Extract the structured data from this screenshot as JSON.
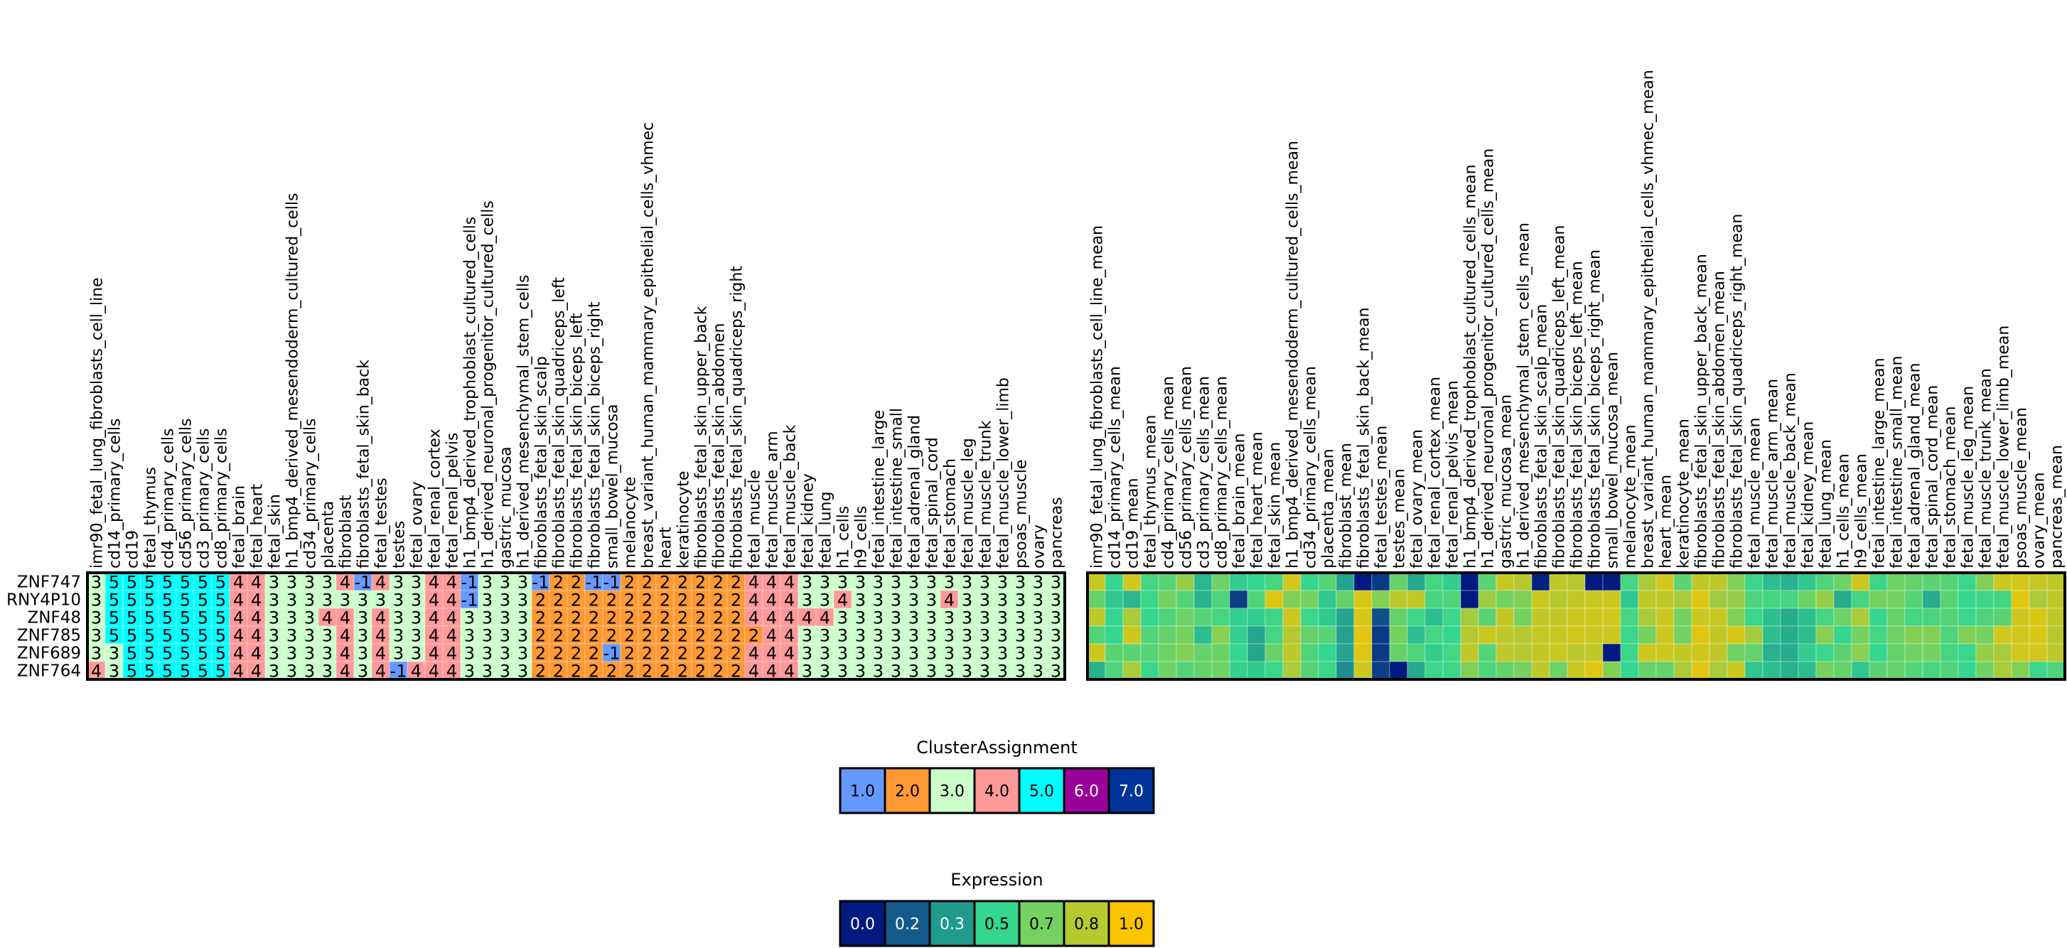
{
  "chart_data": [
    {
      "type": "heatmap",
      "title": "ClusterAssignment",
      "rows": [
        "ZNF747",
        "RNY4P10",
        "ZNF48",
        "ZNF785",
        "ZNF689",
        "ZNF764"
      ],
      "columns": [
        "imr90_fetal_lung_fibroblasts_cell_line",
        "cd14_primary_cells",
        "cd19",
        "fetal_thymus",
        "cd4_primary_cells",
        "cd56_primary_cells",
        "cd3_primary_cells",
        "cd8_primary_cells",
        "fetal_brain",
        "fetal_heart",
        "fetal_skin",
        "h1_bmp4_derived_mesendoderm_cultured_cells",
        "cd34_primary_cells",
        "placenta",
        "fibroblast",
        "fibroblasts_fetal_skin_back",
        "fetal_testes",
        "testes",
        "fetal_ovary",
        "fetal_renal_cortex",
        "fetal_renal_pelvis",
        "h1_bmp4_derived_trophoblast_cultured_cells",
        "h1_derived_neuronal_progenitor_cultured_cells",
        "gastric_mucosa",
        "h1_derived_mesenchymal_stem_cells",
        "fibroblasts_fetal_skin_scalp",
        "fibroblasts_fetal_skin_quadriceps_left",
        "fibroblasts_fetal_skin_biceps_left",
        "fibroblasts_fetal_skin_biceps_right",
        "small_bowel_mucosa",
        "melanocyte",
        "breast_variant_human_mammary_epithelial_cells_vhmec",
        "heart",
        "keratinocyte",
        "fibroblasts_fetal_skin_upper_back",
        "fibroblasts_fetal_skin_abdomen",
        "fibroblasts_fetal_skin_quadriceps_right",
        "fetal_muscle",
        "fetal_muscle_arm",
        "fetal_muscle_back",
        "fetal_kidney",
        "fetal_lung",
        "h1_cells",
        "h9_cells",
        "fetal_intestine_large",
        "fetal_intestine_small",
        "fetal_adrenal_gland",
        "fetal_spinal_cord",
        "fetal_stomach",
        "fetal_muscle_leg",
        "fetal_muscle_trunk",
        "fetal_muscle_lower_limb",
        "psoas_muscle",
        "ovary",
        "pancreas"
      ],
      "values": [
        [
          3,
          5,
          5,
          5,
          5,
          5,
          5,
          5,
          4,
          4,
          3,
          3,
          3,
          3,
          4,
          -1,
          4,
          3,
          3,
          4,
          4,
          -1,
          3,
          3,
          3,
          -1,
          2,
          2,
          -1,
          -1,
          2,
          2,
          2,
          2,
          2,
          2,
          2,
          4,
          4,
          4,
          3,
          3,
          3,
          3,
          3,
          3,
          3,
          3,
          3,
          3,
          3,
          3,
          3,
          3,
          3
        ],
        [
          3,
          5,
          5,
          5,
          5,
          5,
          5,
          5,
          4,
          4,
          3,
          3,
          3,
          3,
          3,
          3,
          3,
          3,
          3,
          4,
          4,
          -1,
          3,
          3,
          3,
          2,
          2,
          2,
          2,
          2,
          2,
          2,
          2,
          2,
          2,
          2,
          2,
          4,
          4,
          4,
          3,
          3,
          4,
          3,
          3,
          3,
          3,
          3,
          4,
          3,
          3,
          3,
          3,
          3,
          3
        ],
        [
          3,
          5,
          5,
          5,
          5,
          5,
          5,
          5,
          4,
          4,
          3,
          3,
          3,
          4,
          4,
          3,
          4,
          3,
          3,
          4,
          4,
          3,
          3,
          3,
          3,
          2,
          2,
          2,
          2,
          2,
          2,
          2,
          2,
          2,
          2,
          2,
          2,
          4,
          4,
          4,
          4,
          4,
          3,
          3,
          3,
          3,
          3,
          3,
          3,
          3,
          3,
          3,
          3,
          3,
          3
        ],
        [
          3,
          5,
          5,
          5,
          5,
          5,
          5,
          5,
          4,
          4,
          3,
          3,
          3,
          3,
          4,
          3,
          4,
          3,
          3,
          4,
          4,
          3,
          3,
          3,
          3,
          2,
          2,
          2,
          2,
          2,
          2,
          2,
          2,
          2,
          2,
          2,
          2,
          2,
          4,
          4,
          3,
          3,
          3,
          3,
          3,
          3,
          3,
          3,
          3,
          3,
          3,
          3,
          3,
          3,
          3
        ],
        [
          3,
          3,
          5,
          5,
          5,
          5,
          5,
          5,
          4,
          4,
          3,
          3,
          3,
          3,
          4,
          3,
          4,
          3,
          3,
          4,
          4,
          3,
          3,
          3,
          3,
          2,
          2,
          2,
          2,
          -1,
          2,
          2,
          2,
          2,
          2,
          2,
          2,
          4,
          4,
          4,
          3,
          3,
          3,
          3,
          3,
          3,
          3,
          3,
          3,
          3,
          3,
          3,
          3,
          3,
          3
        ],
        [
          4,
          3,
          5,
          5,
          5,
          5,
          5,
          5,
          4,
          4,
          3,
          3,
          3,
          3,
          4,
          3,
          4,
          -1,
          4,
          4,
          4,
          3,
          3,
          3,
          3,
          2,
          2,
          2,
          2,
          2,
          2,
          2,
          2,
          2,
          2,
          2,
          2,
          4,
          4,
          4,
          3,
          3,
          3,
          3,
          3,
          3,
          3,
          3,
          3,
          3,
          3,
          3,
          3,
          3,
          3
        ]
      ],
      "color_map": {
        "-1": "#6699ff",
        "1": "#6699ff",
        "2": "#ff9933",
        "3": "#ccffcc",
        "4": "#ff9999",
        "5": "#00ffff",
        "6": "#990099",
        "7": "#003399"
      }
    },
    {
      "type": "heatmap",
      "title": "Expression",
      "rows": [
        "ZNF747",
        "RNY4P10",
        "ZNF48",
        "ZNF785",
        "ZNF689",
        "ZNF764"
      ],
      "columns": [
        "imr90_fetal_lung_fibroblasts_cell_line_mean",
        "cd14_primary_cells_mean",
        "cd19_mean",
        "fetal_thymus_mean",
        "cd4_primary_cells_mean",
        "cd56_primary_cells_mean",
        "cd3_primary_cells_mean",
        "cd8_primary_cells_mean",
        "fetal_brain_mean",
        "fetal_heart_mean",
        "fetal_skin_mean",
        "h1_bmp4_derived_mesendoderm_cultured_cells_mean",
        "cd34_primary_cells_mean",
        "placenta_mean",
        "fibroblast_mean",
        "fibroblasts_fetal_skin_back_mean",
        "fetal_testes_mean",
        "testes_mean",
        "fetal_ovary_mean",
        "fetal_renal_cortex_mean",
        "fetal_renal_pelvis_mean",
        "h1_bmp4_derived_trophoblast_cultured_cells_mean",
        "h1_derived_neuronal_progenitor_cultured_cells_mean",
        "gastric_mucosa_mean",
        "h1_derived_mesenchymal_stem_cells_mean",
        "fibroblasts_fetal_skin_scalp_mean",
        "fibroblasts_fetal_skin_quadriceps_left_mean",
        "fibroblasts_fetal_skin_biceps_left_mean",
        "fibroblasts_fetal_skin_biceps_right_mean",
        "small_bowel_mucosa_mean",
        "melanocyte_mean",
        "breast_variant_human_mammary_epithelial_cells_vhmec_mean",
        "heart_mean",
        "keratinocyte_mean",
        "fibroblasts_fetal_skin_upper_back_mean",
        "fibroblasts_fetal_skin_abdomen_mean",
        "fibroblasts_fetal_skin_quadriceps_right_mean",
        "fetal_muscle_mean",
        "fetal_muscle_arm_mean",
        "fetal_muscle_back_mean",
        "fetal_kidney_mean",
        "fetal_lung_mean",
        "h1_cells_mean",
        "h9_cells_mean",
        "fetal_intestine_large_mean",
        "fetal_intestine_small_mean",
        "fetal_adrenal_gland_mean",
        "fetal_spinal_cord_mean",
        "fetal_stomach_mean",
        "fetal_muscle_leg_mean",
        "fetal_muscle_trunk_mean",
        "fetal_muscle_lower_limb_mean",
        "psoas_muscle_mean",
        "ovary_mean",
        "pancreas_mean"
      ],
      "values": [
        [
          0.85,
          0.5,
          0.88,
          0.55,
          0.6,
          0.75,
          0.4,
          0.68,
          0.47,
          0.5,
          0.55,
          0.88,
          0.5,
          0.6,
          0.33,
          0.0,
          0.1,
          0.65,
          0.35,
          0.55,
          0.47,
          0.0,
          0.62,
          0.85,
          0.8,
          0.02,
          0.83,
          0.8,
          0.0,
          0.0,
          0.55,
          0.78,
          0.88,
          0.62,
          0.83,
          0.82,
          0.72,
          0.52,
          0.42,
          0.38,
          0.45,
          0.58,
          0.68,
          0.87,
          0.53,
          0.68,
          0.65,
          0.62,
          0.6,
          0.52,
          0.72,
          0.87,
          0.88,
          0.85,
          0.82
        ],
        [
          0.65,
          0.45,
          0.4,
          0.53,
          0.7,
          0.6,
          0.38,
          0.58,
          0.12,
          0.58,
          0.92,
          0.72,
          0.7,
          0.45,
          0.65,
          0.9,
          0.72,
          0.82,
          0.83,
          0.55,
          0.58,
          0.0,
          0.76,
          0.7,
          0.72,
          0.86,
          0.8,
          0.84,
          0.86,
          0.87,
          0.45,
          0.83,
          0.82,
          0.78,
          0.92,
          0.76,
          0.75,
          0.58,
          0.55,
          0.55,
          0.68,
          0.75,
          0.36,
          0.55,
          0.7,
          0.7,
          0.6,
          0.36,
          0.62,
          0.5,
          0.53,
          0.55,
          0.93,
          0.78,
          0.82
        ],
        [
          0.82,
          0.5,
          0.78,
          0.5,
          0.58,
          0.68,
          0.6,
          0.56,
          0.48,
          0.47,
          0.53,
          0.87,
          0.52,
          0.46,
          0.33,
          0.9,
          0.17,
          0.65,
          0.53,
          0.42,
          0.52,
          0.77,
          0.62,
          0.84,
          0.7,
          0.83,
          0.84,
          0.86,
          0.87,
          0.88,
          0.55,
          0.78,
          0.86,
          0.7,
          0.86,
          0.85,
          0.72,
          0.52,
          0.42,
          0.36,
          0.42,
          0.55,
          0.68,
          0.78,
          0.5,
          0.65,
          0.55,
          0.57,
          0.6,
          0.52,
          0.58,
          0.62,
          0.87,
          0.9,
          0.82
        ],
        [
          0.58,
          0.5,
          0.87,
          0.6,
          0.65,
          0.7,
          0.42,
          0.73,
          0.48,
          0.34,
          0.55,
          0.8,
          0.65,
          0.6,
          0.32,
          0.93,
          0.1,
          0.7,
          0.42,
          0.55,
          0.5,
          0.8,
          0.86,
          0.82,
          0.8,
          0.85,
          0.85,
          0.88,
          0.86,
          0.87,
          0.52,
          0.7,
          0.86,
          0.7,
          0.92,
          0.83,
          0.9,
          0.77,
          0.42,
          0.36,
          0.42,
          0.73,
          0.5,
          0.7,
          0.55,
          0.68,
          0.72,
          0.72,
          0.58,
          0.72,
          0.7,
          0.88,
          0.88,
          0.9,
          0.8
        ],
        [
          0.86,
          0.62,
          0.62,
          0.6,
          0.68,
          0.72,
          0.65,
          0.67,
          0.5,
          0.34,
          0.66,
          0.82,
          0.58,
          0.5,
          0.33,
          0.92,
          0.1,
          0.65,
          0.58,
          0.47,
          0.55,
          0.83,
          0.6,
          0.82,
          0.8,
          0.84,
          0.86,
          0.81,
          0.83,
          0.0,
          0.52,
          0.87,
          0.86,
          0.84,
          0.87,
          0.83,
          0.68,
          0.65,
          0.38,
          0.36,
          0.47,
          0.52,
          0.62,
          0.73,
          0.5,
          0.65,
          0.68,
          0.7,
          0.55,
          0.52,
          0.75,
          0.78,
          0.88,
          0.88,
          0.82
        ],
        [
          0.38,
          0.58,
          0.78,
          0.52,
          0.68,
          0.6,
          0.65,
          0.68,
          0.48,
          0.46,
          0.52,
          0.78,
          0.6,
          0.52,
          0.28,
          0.86,
          0.12,
          0.0,
          0.35,
          0.52,
          0.52,
          0.72,
          0.58,
          0.65,
          0.7,
          0.82,
          0.68,
          0.85,
          0.92,
          0.72,
          0.5,
          0.66,
          0.65,
          0.78,
          0.92,
          0.78,
          0.86,
          0.45,
          0.42,
          0.38,
          0.42,
          0.7,
          0.65,
          0.45,
          0.62,
          0.65,
          0.6,
          0.56,
          0.58,
          0.5,
          0.68,
          0.78,
          0.72,
          0.52,
          0.58
        ]
      ],
      "range": [
        0,
        1
      ]
    }
  ],
  "legends": {
    "cluster": {
      "title": "ClusterAssignment",
      "items": [
        {
          "label": "1.0",
          "color": "#6699ff",
          "text_color": "#000000"
        },
        {
          "label": "2.0",
          "color": "#ff9933",
          "text_color": "#000000"
        },
        {
          "label": "3.0",
          "color": "#ccffcc",
          "text_color": "#000000"
        },
        {
          "label": "4.0",
          "color": "#ff9999",
          "text_color": "#000000"
        },
        {
          "label": "5.0",
          "color": "#00ffff",
          "text_color": "#000000"
        },
        {
          "label": "6.0",
          "color": "#990099",
          "text_color": "#ffffff"
        },
        {
          "label": "7.0",
          "color": "#003399",
          "text_color": "#ffffff"
        }
      ]
    },
    "expression": {
      "title": "Expression",
      "items": [
        {
          "label": "0.0",
          "value": 0.0,
          "color": "#001a80",
          "text_color": "#ffffff"
        },
        {
          "label": "0.2",
          "value": 0.2,
          "color": "#135a8a",
          "text_color": "#ffffff"
        },
        {
          "label": "0.3",
          "value": 0.3,
          "color": "#219a8e",
          "text_color": "#ffffff"
        },
        {
          "label": "0.5",
          "value": 0.5,
          "color": "#35d68f",
          "text_color": "#000000"
        },
        {
          "label": "0.7",
          "value": 0.7,
          "color": "#75d160",
          "text_color": "#000000"
        },
        {
          "label": "0.8",
          "value": 0.8,
          "color": "#b7c930",
          "text_color": "#000000"
        },
        {
          "label": "1.0",
          "value": 1.0,
          "color": "#fac400",
          "text_color": "#000000"
        }
      ]
    }
  }
}
